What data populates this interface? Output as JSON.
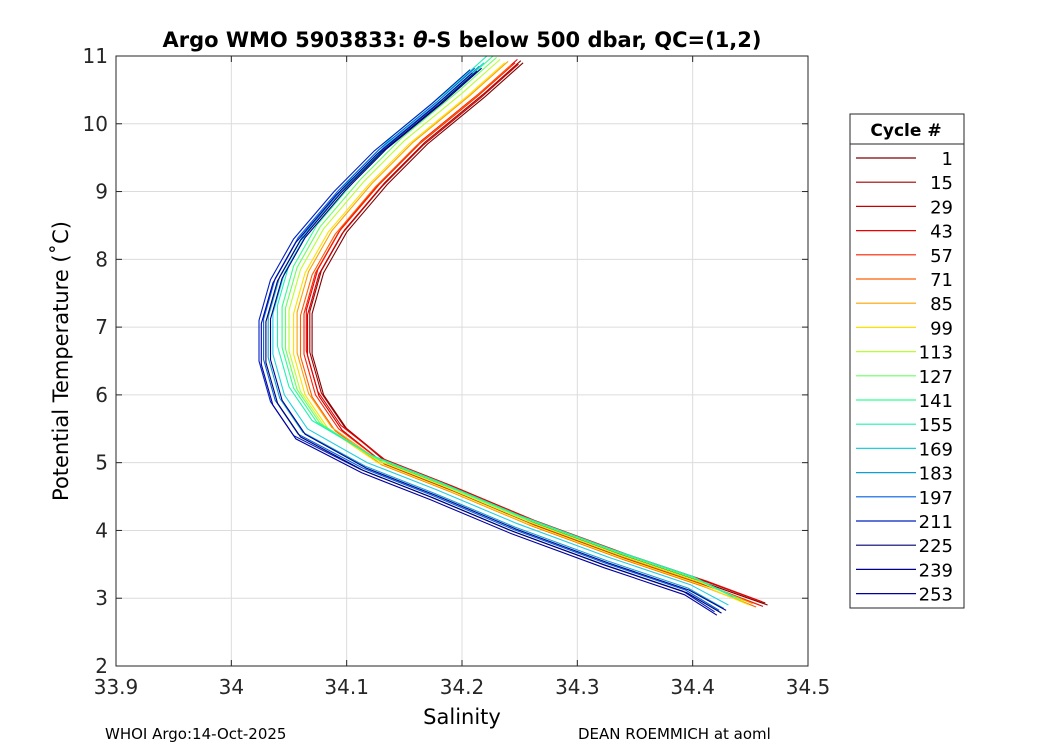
{
  "chart_data": {
    "type": "line",
    "title_prefix": "Argo WMO 5903833: ",
    "title_theta": "θ",
    "title_suffix": "-S below 500 dbar,  QC=(1,2)",
    "xlabel": "Salinity",
    "ylabel": "Potential Temperature (˚C)",
    "xlim": [
      33.9,
      34.5
    ],
    "ylim": [
      2,
      11
    ],
    "x_ticks": [
      33.9,
      34.0,
      34.1,
      34.2,
      34.3,
      34.4,
      34.5
    ],
    "x_tick_labels": [
      "33.9",
      "34",
      "34.1",
      "34.2",
      "34.3",
      "34.4",
      "34.5"
    ],
    "y_ticks": [
      2,
      3,
      4,
      5,
      6,
      7,
      8,
      9,
      10,
      11
    ],
    "y_tick_labels": [
      "2",
      "3",
      "4",
      "5",
      "6",
      "7",
      "8",
      "9",
      "10",
      "11"
    ],
    "grid": true,
    "legend_title": "Cycle #",
    "legend_position": "outside-right",
    "series": [
      {
        "name": "1",
        "color": "#800000"
      },
      {
        "name": "15",
        "color": "#a30000"
      },
      {
        "name": "29",
        "color": "#c80000"
      },
      {
        "name": "43",
        "color": "#ec0000"
      },
      {
        "name": "57",
        "color": "#ff2000"
      },
      {
        "name": "71",
        "color": "#ff5e00"
      },
      {
        "name": "85",
        "color": "#ffa000"
      },
      {
        "name": "99",
        "color": "#ffe000"
      },
      {
        "name": "113",
        "color": "#b8ff30"
      },
      {
        "name": "127",
        "color": "#6aff60"
      },
      {
        "name": "141",
        "color": "#30ff90"
      },
      {
        "name": "155",
        "color": "#20f0b0"
      },
      {
        "name": "169",
        "color": "#20d0e0"
      },
      {
        "name": "183",
        "color": "#10a0d0"
      },
      {
        "name": "197",
        "color": "#0060e0"
      },
      {
        "name": "211",
        "color": "#0020c0"
      },
      {
        "name": "225",
        "color": "#000070"
      },
      {
        "name": "239",
        "color": "#000090"
      },
      {
        "name": "253",
        "color": "#0000a0"
      }
    ],
    "profile_path": [
      {
        "s": 34.243,
        "t": 10.9
      },
      {
        "s": 34.21,
        "t": 10.4
      },
      {
        "s": 34.16,
        "t": 9.7
      },
      {
        "s": 34.125,
        "t": 9.1
      },
      {
        "s": 34.09,
        "t": 8.4
      },
      {
        "s": 34.07,
        "t": 7.8
      },
      {
        "s": 34.06,
        "t": 7.2
      },
      {
        "s": 34.06,
        "t": 6.6
      },
      {
        "s": 34.07,
        "t": 6.0
      },
      {
        "s": 34.09,
        "t": 5.5
      },
      {
        "s": 34.13,
        "t": 5.0
      },
      {
        "s": 34.19,
        "t": 4.6
      },
      {
        "s": 34.26,
        "t": 4.1
      },
      {
        "s": 34.34,
        "t": 3.6
      },
      {
        "s": 34.41,
        "t": 3.2
      },
      {
        "s": 34.455,
        "t": 2.9
      }
    ],
    "cycle_offsets": [
      {
        "ds": 0.01,
        "dt": 0.0
      },
      {
        "ds": 0.008,
        "dt": 0.03
      },
      {
        "ds": 0.006,
        "dt": -0.02
      },
      {
        "ds": 0.005,
        "dt": 0.05
      },
      {
        "ds": 0.003,
        "dt": 0.0
      },
      {
        "ds": 0.0,
        "dt": -0.03
      },
      {
        "ds": -0.003,
        "dt": 0.02
      },
      {
        "ds": -0.006,
        "dt": 0.0
      },
      {
        "ds": -0.01,
        "dt": 0.05
      },
      {
        "ds": -0.013,
        "dt": 0.08
      },
      {
        "ds": -0.016,
        "dt": 0.1
      },
      {
        "ds": -0.02,
        "dt": 0.12
      },
      {
        "ds": -0.024,
        "dt": 0.0
      },
      {
        "ds": -0.028,
        "dt": -0.05
      },
      {
        "ds": -0.032,
        "dt": -0.08
      },
      {
        "ds": -0.036,
        "dt": -0.1
      },
      {
        "ds": -0.03,
        "dt": -0.12
      },
      {
        "ds": -0.026,
        "dt": -0.08
      },
      {
        "ds": -0.034,
        "dt": -0.15
      }
    ]
  },
  "footer": {
    "left": "WHOI Argo:14-Oct-2025",
    "right": "DEAN ROEMMICH at aoml"
  }
}
